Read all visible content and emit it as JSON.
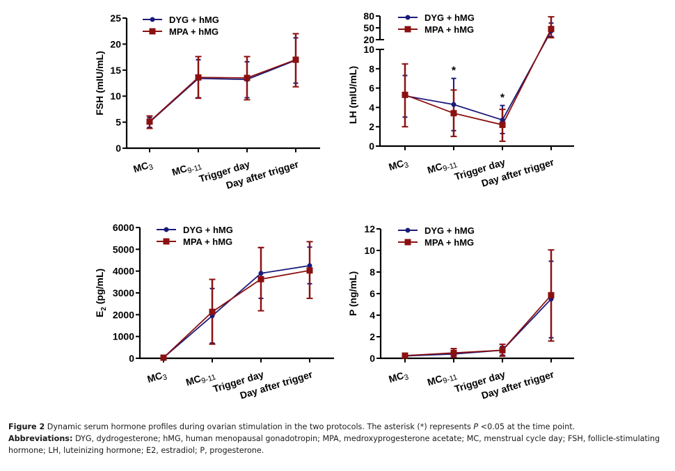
{
  "chart_data": [
    {
      "id": "fsh",
      "type": "line",
      "ylabel": "FSH (mIU/mL)",
      "ylabel_main": "FSH (mIU/mL)",
      "ylabel_sub": "",
      "ylabel_rest": "",
      "ylim": [
        0,
        25
      ],
      "yticks": [
        0,
        5,
        10,
        15,
        20,
        25
      ],
      "categories": [
        {
          "main": "MC",
          "sub": "3"
        },
        {
          "main": "MC",
          "sub": "9-11"
        },
        {
          "main": "Trigger day",
          "sub": ""
        },
        {
          "main": "Day after trigger",
          "sub": ""
        }
      ],
      "series": [
        {
          "name": "DYG + hMG",
          "color": "#1a1a7a",
          "marker": "circle",
          "values": [
            5.0,
            13.4,
            13.2,
            16.9
          ],
          "err_low": [
            4.0,
            9.7,
            9.7,
            12.5
          ],
          "err_high": [
            5.9,
            17.0,
            16.6,
            21.2
          ]
        },
        {
          "name": "MPA + hMG",
          "color": "#8b1010",
          "marker": "square",
          "values": [
            5.1,
            13.6,
            13.5,
            17.0
          ],
          "err_low": [
            3.8,
            9.6,
            9.3,
            11.8
          ],
          "err_high": [
            6.2,
            17.6,
            17.6,
            22.0
          ]
        }
      ],
      "asterisks": [],
      "legend": "top-left"
    },
    {
      "id": "lh",
      "type": "line",
      "ylabel": "LH (mIU/mL)",
      "ylabel_main": "LH (mIU/mL)",
      "ylabel_sub": "",
      "ylabel_rest": "",
      "broken_axis": true,
      "ylim_lower": [
        0,
        10
      ],
      "ylim_upper": [
        20,
        80
      ],
      "yticks_lower": [
        0,
        2,
        4,
        6,
        8,
        10
      ],
      "yticks_upper": [
        20,
        50,
        80
      ],
      "categories": [
        {
          "main": "MC",
          "sub": "3"
        },
        {
          "main": "MC",
          "sub": "9-11"
        },
        {
          "main": "Trigger day",
          "sub": ""
        },
        {
          "main": "Day after trigger",
          "sub": ""
        }
      ],
      "series": [
        {
          "name": "DYG + hMG",
          "color": "#1a1a7a",
          "marker": "circle",
          "values": [
            5.2,
            4.3,
            2.7,
            42
          ],
          "err_low": [
            3.0,
            1.6,
            1.3,
            28
          ],
          "err_high": [
            7.3,
            7.0,
            4.2,
            62
          ]
        },
        {
          "name": "MPA + hMG",
          "color": "#8b1010",
          "marker": "square",
          "values": [
            5.3,
            3.4,
            2.2,
            47
          ],
          "err_low": [
            2.0,
            1.0,
            0.5,
            25
          ],
          "err_high": [
            8.5,
            5.8,
            3.8,
            78
          ]
        }
      ],
      "asterisks": [
        {
          "category_index": 1,
          "label": "*"
        },
        {
          "category_index": 2,
          "label": "*"
        }
      ],
      "legend": "top-left"
    },
    {
      "id": "e2",
      "type": "line",
      "ylabel": "E2 (pg/mL)",
      "ylabel_main": "E",
      "ylabel_sub": "2",
      "ylabel_rest": " (pg/mL)",
      "ylim": [
        0,
        6000
      ],
      "yticks": [
        0,
        1000,
        2000,
        3000,
        4000,
        5000,
        6000
      ],
      "categories": [
        {
          "main": "MC",
          "sub": "3"
        },
        {
          "main": "MC",
          "sub": "9-11"
        },
        {
          "main": "Trigger day",
          "sub": ""
        },
        {
          "main": "Day after trigger",
          "sub": ""
        }
      ],
      "series": [
        {
          "name": "DYG + hMG",
          "color": "#1a1a7a",
          "marker": "circle",
          "values": [
            30,
            1950,
            3900,
            4250
          ],
          "err_low": [
            20,
            700,
            2750,
            3420
          ],
          "err_high": [
            40,
            3200,
            5080,
            5100
          ]
        },
        {
          "name": "MPA + hMG",
          "color": "#8b1010",
          "marker": "square",
          "values": [
            30,
            2130,
            3630,
            4030
          ],
          "err_low": [
            20,
            650,
            2180,
            2750
          ],
          "err_high": [
            40,
            3620,
            5080,
            5350
          ]
        }
      ],
      "asterisks": [],
      "legend": "top-left"
    },
    {
      "id": "p",
      "type": "line",
      "ylabel": "P (ng/mL)",
      "ylabel_main": "P (ng/mL)",
      "ylabel_sub": "",
      "ylabel_rest": "",
      "ylim": [
        0,
        12
      ],
      "yticks": [
        0,
        2,
        4,
        6,
        8,
        10,
        12
      ],
      "categories": [
        {
          "main": "MC",
          "sub": "3"
        },
        {
          "main": "MC",
          "sub": "9-11"
        },
        {
          "main": "Trigger day",
          "sub": ""
        },
        {
          "main": "Day after trigger",
          "sub": ""
        }
      ],
      "series": [
        {
          "name": "DYG + hMG",
          "color": "#1a1a7a",
          "marker": "circle",
          "values": [
            0.22,
            0.4,
            0.75,
            5.5
          ],
          "err_low": [
            0.15,
            0.2,
            0.3,
            1.9
          ],
          "err_high": [
            0.3,
            0.6,
            1.1,
            9.0
          ]
        },
        {
          "name": "MPA + hMG",
          "color": "#8b1010",
          "marker": "square",
          "values": [
            0.25,
            0.5,
            0.75,
            5.85
          ],
          "err_low": [
            0.15,
            0.1,
            0.2,
            1.6
          ],
          "err_high": [
            0.35,
            0.9,
            1.3,
            10.05
          ]
        }
      ],
      "asterisks": [],
      "legend": "top-left"
    }
  ],
  "caption": {
    "figure_label": "Figure 2",
    "figure_text_before_p": " Dynamic serum hormone profiles during ovarian stimulation in the two protocols. The asterisk (*) represents ",
    "p_symbol": "P",
    "figure_text_after_p": " <0.05 at the time point.",
    "abbreviations_label": "Abbreviations:",
    "abbreviations_text": " DYG, dydrogesterone; hMG, human menopausal gonadotropin; MPA, medroxyprogesterone acetate; MC, menstrual cycle day; FSH, follicle-stimulating hormone; LH, luteinizing hormone; E2, estradiol; P, progesterone."
  }
}
